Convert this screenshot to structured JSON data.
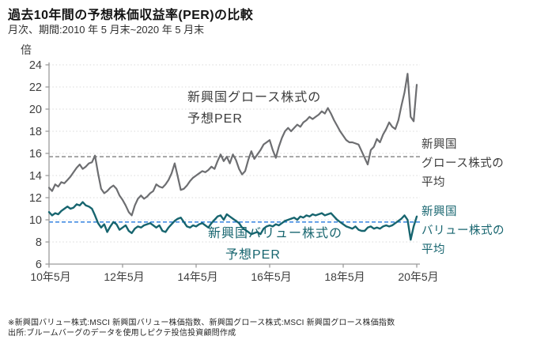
{
  "header": {
    "title": "過去10年間の予想株価収益率(PER)の比較",
    "subtitle": "月次、期間:2010 年 5 月末~2020 年 5 月末",
    "unit_label": "倍"
  },
  "annotations": {
    "growth_line_label_l1": "新興国グロース株式の",
    "growth_line_label_l2": "予想PER",
    "value_line_label_l1": "新興国バリュー株式の",
    "value_line_label_l2": "予想PER",
    "growth_avg_l1": "新興国",
    "growth_avg_l2": "グロース株式の",
    "growth_avg_l3": "平均",
    "value_avg_l1": "新興国",
    "value_avg_l2": "バリュー株式の",
    "value_avg_l3": "平均"
  },
  "footnotes": {
    "line1": "※新興国バリュー株式:MSCI 新興国バリュー株価指数、新興国グロース株式:MSCI 新興国グロース株価指数",
    "line2": "出所:ブルームバーグのデータを使用しピクテ投信投資顧問作成"
  },
  "chart_data": {
    "type": "line",
    "title": "過去10年間の予想株価収益率(PER)の比較",
    "period": "2010年5月末～2020年5月末（月次）",
    "ylabel": "倍",
    "ylim": [
      6,
      24
    ],
    "y_ticks": [
      6,
      8,
      10,
      12,
      14,
      16,
      18,
      20,
      22,
      24
    ],
    "grid": "horizontal-dotted",
    "legend_position": "in-plot-annotations",
    "x_ticks": {
      "month_indices": [
        0,
        24,
        48,
        72,
        96,
        120
      ],
      "labels": [
        "10年5月",
        "12年5月",
        "14年5月",
        "16年5月",
        "18年5月",
        "20年5月"
      ]
    },
    "series": [
      {
        "name": "新興国グロース株式の予想PER",
        "color": "#6d6e71",
        "values": [
          12.9,
          12.6,
          13.2,
          13.0,
          13.4,
          13.3,
          13.6,
          13.9,
          14.3,
          14.7,
          15.0,
          14.6,
          14.8,
          15.1,
          15.2,
          15.8,
          14.2,
          12.8,
          12.4,
          12.6,
          12.9,
          13.1,
          12.8,
          12.2,
          11.8,
          11.3,
          10.7,
          10.4,
          11.3,
          11.9,
          12.2,
          11.9,
          12.1,
          12.4,
          12.6,
          13.2,
          13.0,
          12.9,
          13.2,
          13.6,
          14.2,
          15.1,
          13.9,
          12.7,
          12.8,
          13.1,
          13.5,
          13.8,
          14.0,
          14.2,
          14.4,
          14.3,
          14.5,
          14.8,
          14.6,
          15.3,
          15.9,
          15.3,
          15.7,
          15.1,
          15.9,
          15.4,
          14.6,
          14.1,
          14.4,
          15.4,
          16.2,
          15.5,
          15.9,
          16.3,
          16.8,
          17.0,
          17.2,
          16.3,
          15.6,
          16.6,
          17.4,
          18.0,
          18.3,
          18.0,
          18.3,
          18.6,
          18.4,
          18.8,
          19.0,
          19.3,
          19.1,
          19.3,
          19.5,
          19.8,
          19.6,
          20.1,
          19.6,
          19.0,
          18.5,
          18.0,
          17.6,
          17.2,
          17.0,
          17.0,
          16.9,
          16.8,
          16.2,
          15.6,
          15.0,
          16.3,
          16.6,
          17.3,
          17.0,
          17.7,
          18.2,
          18.8,
          18.4,
          18.2,
          19.0,
          20.3,
          21.5,
          23.2,
          19.3,
          18.9,
          22.2
        ]
      },
      {
        "name": "新興国バリュー株式の予想PER",
        "color": "#17656f",
        "values": [
          10.7,
          10.4,
          10.6,
          10.5,
          10.8,
          11.0,
          11.2,
          11.0,
          11.1,
          11.4,
          11.3,
          11.6,
          11.3,
          11.2,
          11.0,
          10.4,
          9.7,
          9.3,
          9.6,
          8.9,
          9.4,
          9.8,
          9.6,
          9.1,
          9.3,
          9.5,
          9.0,
          8.8,
          9.2,
          9.4,
          9.3,
          9.5,
          9.6,
          9.7,
          9.5,
          9.3,
          9.5,
          9.0,
          8.9,
          9.3,
          9.6,
          9.9,
          10.1,
          10.2,
          9.8,
          9.4,
          9.3,
          9.5,
          9.4,
          9.6,
          9.7,
          9.5,
          9.3,
          9.7,
          10.0,
          10.3,
          10.4,
          10.0,
          10.5,
          10.3,
          10.1,
          9.9,
          9.7,
          9.3,
          9.1,
          8.9,
          8.7,
          8.8,
          8.9,
          8.7,
          9.2,
          9.4,
          9.5,
          9.4,
          9.6,
          9.5,
          9.7,
          9.9,
          10.0,
          10.1,
          10.2,
          10.0,
          10.3,
          10.2,
          10.4,
          10.3,
          10.5,
          10.4,
          10.5,
          10.6,
          10.4,
          10.5,
          10.6,
          10.3,
          10.0,
          9.8,
          9.6,
          9.4,
          9.3,
          9.2,
          9.4,
          9.1,
          9.0,
          9.0,
          9.3,
          9.4,
          9.2,
          9.3,
          9.2,
          9.4,
          9.5,
          9.4,
          9.5,
          9.7,
          9.9,
          10.1,
          10.4,
          10.0,
          8.2,
          9.4,
          10.3
        ]
      }
    ],
    "averages": [
      {
        "label": "新興国グロース株式の平均",
        "value": 15.7,
        "color": "#808080"
      },
      {
        "label": "新興国バリュー株式の平均",
        "value": 9.8,
        "color": "#2277dd"
      }
    ],
    "colors": {
      "gridline": "#d9d9d9",
      "axis": "#9b9b9b",
      "tick_label": "#3f3f3f"
    }
  }
}
